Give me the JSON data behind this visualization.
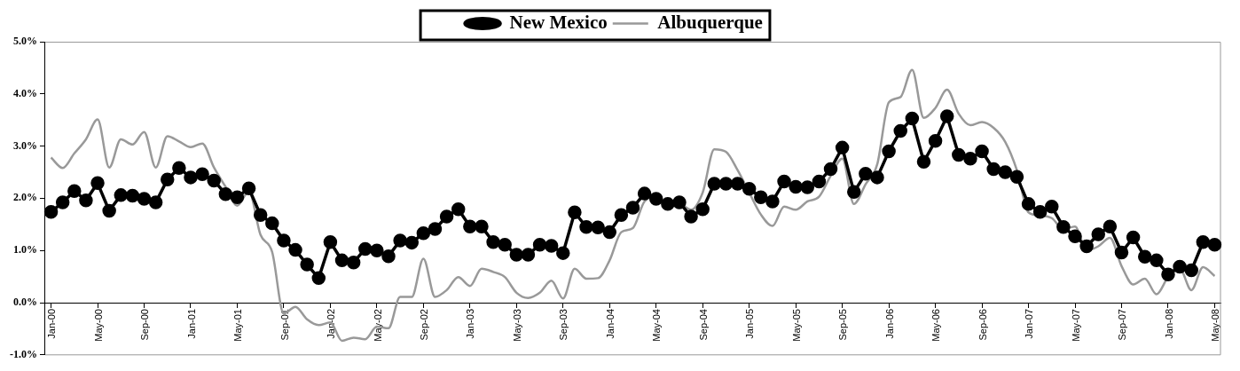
{
  "chart_data": {
    "type": "line",
    "categories": [
      "Jan-00",
      null,
      null,
      null,
      "May-00",
      null,
      null,
      null,
      "Sep-00",
      null,
      null,
      null,
      "Jan-01",
      null,
      null,
      null,
      "May-01",
      null,
      null,
      null,
      "Sep-01",
      null,
      null,
      null,
      "Jan-02",
      null,
      null,
      null,
      "May-02",
      null,
      null,
      null,
      "Sep-02",
      null,
      null,
      null,
      "Jan-03",
      null,
      null,
      null,
      "May-03",
      null,
      null,
      null,
      "Sep-03",
      null,
      null,
      null,
      "Jan-04",
      null,
      null,
      null,
      "May-04",
      null,
      null,
      null,
      "Sep-04",
      null,
      null,
      null,
      "Jan-05",
      null,
      null,
      null,
      "May-05",
      null,
      null,
      null,
      "Sep-05",
      null,
      null,
      null,
      "Jan-06",
      null,
      null,
      null,
      "May-06",
      null,
      null,
      null,
      "Sep-06",
      null,
      null,
      null,
      "Jan-07",
      null,
      null,
      null,
      "May-07",
      null,
      null,
      null,
      "Sep-07",
      null,
      null,
      null,
      "Jan-08",
      null,
      null,
      null,
      "May-08"
    ],
    "series": [
      {
        "name": "New Mexico",
        "color": "#000000",
        "marker": "circle",
        "values": [
          1.74,
          1.92,
          2.14,
          1.96,
          2.29,
          1.76,
          2.06,
          2.05,
          1.99,
          1.92,
          2.36,
          2.58,
          2.4,
          2.46,
          2.34,
          2.08,
          2.02,
          2.19,
          1.68,
          1.52,
          1.19,
          1.01,
          0.73,
          0.47,
          1.16,
          0.81,
          0.77,
          1.03,
          1.0,
          0.89,
          1.19,
          1.15,
          1.33,
          1.41,
          1.65,
          1.79,
          1.46,
          1.46,
          1.16,
          1.11,
          0.92,
          0.92,
          1.11,
          1.09,
          0.95,
          1.73,
          1.45,
          1.44,
          1.35,
          1.68,
          1.82,
          2.09,
          1.99,
          1.89,
          1.92,
          1.65,
          1.79,
          2.28,
          2.28,
          2.28,
          2.18,
          2.02,
          1.94,
          2.32,
          2.22,
          2.21,
          2.32,
          2.56,
          2.97,
          2.12,
          2.47,
          2.4,
          2.9,
          3.29,
          3.53,
          2.7,
          3.1,
          3.57,
          2.83,
          2.76,
          2.9,
          2.56,
          2.5,
          2.41,
          1.89,
          1.74,
          1.84,
          1.45,
          1.27,
          1.08,
          1.31,
          1.46,
          0.96,
          1.25,
          0.88,
          0.81,
          0.54,
          0.69,
          0.62,
          1.16,
          1.11
        ]
      },
      {
        "name": "Albuquerque",
        "color": "#999999",
        "marker": "none",
        "values": [
          2.78,
          2.58,
          2.86,
          3.13,
          3.51,
          2.59,
          3.13,
          3.03,
          3.27,
          2.59,
          3.19,
          3.09,
          2.98,
          3.05,
          2.59,
          2.22,
          1.86,
          2.13,
          1.3,
          0.97,
          -0.21,
          -0.08,
          -0.32,
          -0.43,
          -0.38,
          -0.73,
          -0.67,
          -0.7,
          -0.46,
          -0.49,
          0.11,
          0.11,
          0.84,
          0.11,
          0.24,
          0.49,
          0.32,
          0.65,
          0.59,
          0.49,
          0.19,
          0.09,
          0.19,
          0.42,
          0.08,
          0.65,
          0.46,
          0.47,
          0.81,
          1.35,
          1.43,
          1.94,
          2.03,
          1.89,
          1.89,
          1.78,
          2.11,
          2.94,
          2.89,
          2.54,
          2.11,
          1.69,
          1.47,
          1.84,
          1.78,
          1.94,
          2.03,
          2.43,
          2.76,
          1.89,
          2.27,
          2.65,
          3.84,
          3.94,
          4.46,
          3.54,
          3.73,
          4.08,
          3.62,
          3.4,
          3.46,
          3.35,
          3.08,
          2.54,
          1.73,
          1.67,
          1.62,
          1.41,
          1.46,
          1.0,
          1.08,
          1.24,
          0.7,
          0.35,
          0.46,
          0.16,
          0.49,
          0.65,
          0.24,
          0.68,
          0.51
        ]
      }
    ],
    "ylim": [
      -1,
      5
    ],
    "yticks": [
      {
        "value": -1,
        "label": "-1.0%"
      },
      {
        "value": 0,
        "label": "0.0%"
      },
      {
        "value": 1,
        "label": "1.0%"
      },
      {
        "value": 2,
        "label": "2.0%"
      },
      {
        "value": 3,
        "label": "3.0%"
      },
      {
        "value": 4,
        "label": "4.0%"
      },
      {
        "value": 5,
        "label": "5.0%"
      }
    ],
    "legend": "top"
  }
}
